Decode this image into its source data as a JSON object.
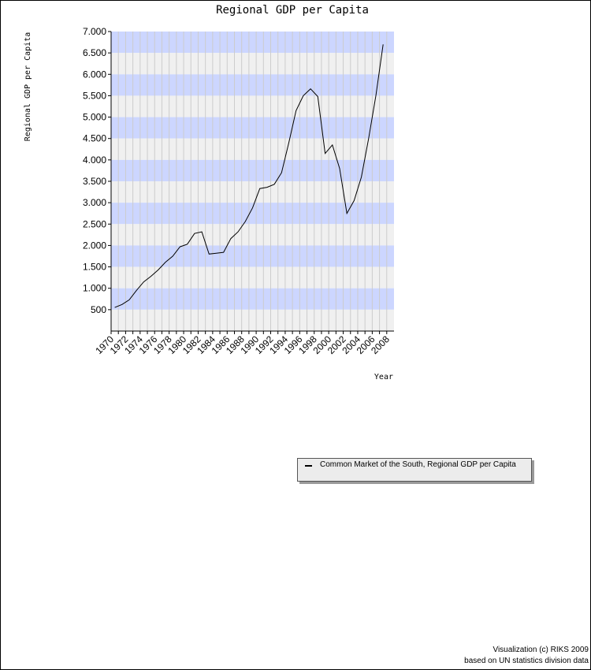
{
  "chart_data": {
    "type": "line",
    "title": "Regional GDP per Capita",
    "xlabel": "Year",
    "ylabel": "Regional GDP per Capita",
    "xlim": [
      1970,
      2008
    ],
    "ylim": [
      0,
      7000
    ],
    "y_ticks": [
      500,
      1000,
      1500,
      2000,
      2500,
      3000,
      3500,
      4000,
      4500,
      5000,
      5500,
      6000,
      6500,
      7000
    ],
    "y_tick_labels": [
      "500",
      "1.000",
      "1.500",
      "2.000",
      "2.500",
      "3.000",
      "3.500",
      "4.000",
      "4.500",
      "5.000",
      "5.500",
      "6.000",
      "6.500",
      "7.000"
    ],
    "x_tick_labels": [
      "1970",
      "1972",
      "1974",
      "1976",
      "1978",
      "1980",
      "1982",
      "1984",
      "1986",
      "1988",
      "1990",
      "1992",
      "1994",
      "1996",
      "1998",
      "2000",
      "2002",
      "2004",
      "2006",
      "2008"
    ],
    "band_colors": [
      "#ccd6ff",
      "#f0f0f0"
    ],
    "grid": true,
    "legend_position": "bottom-right",
    "series": [
      {
        "name": "Common Market of the South, Regional GDP per Capita",
        "color": "#000000",
        "x": [
          1970,
          1971,
          1972,
          1973,
          1974,
          1975,
          1976,
          1977,
          1978,
          1979,
          1980,
          1981,
          1982,
          1983,
          1984,
          1985,
          1986,
          1987,
          1988,
          1989,
          1990,
          1991,
          1992,
          1993,
          1994,
          1995,
          1996,
          1997,
          1998,
          1999,
          2000,
          2001,
          2002,
          2003,
          2004,
          2005,
          2006,
          2007,
          2008
        ],
        "values": [
          550,
          620,
          730,
          950,
          1150,
          1280,
          1430,
          1610,
          1750,
          1970,
          2030,
          2280,
          2320,
          1800,
          1820,
          1840,
          2160,
          2320,
          2560,
          2880,
          3330,
          3360,
          3430,
          3700,
          4400,
          5150,
          5500,
          5660,
          5480,
          4150,
          4350,
          3800,
          2750,
          3050,
          3600,
          4500,
          5500,
          6700,
          null
        ]
      }
    ]
  },
  "footer": {
    "credit_line1": "Visualization (c) RIKS 2009",
    "credit_line2": "based on UN statistics division data"
  }
}
